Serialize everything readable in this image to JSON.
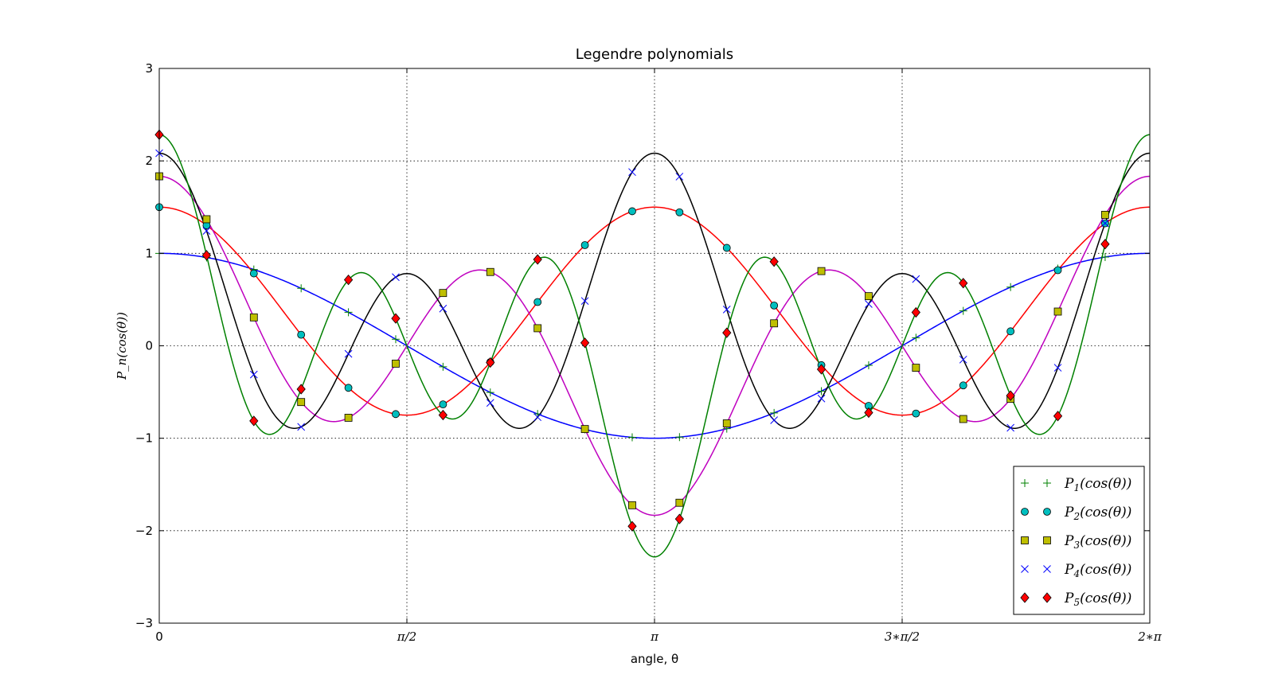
{
  "chart_data": {
    "type": "line",
    "title": "Legendre polynomials",
    "xlabel": "angle, θ",
    "ylabel": "P_n(cos(θ))",
    "xlim": [
      0,
      6.283185307
    ],
    "ylim": [
      -3,
      3
    ],
    "grid": true,
    "legend_position": "lower-right",
    "xticks": [
      {
        "value": 0,
        "label": "0"
      },
      {
        "value": 1.570796327,
        "label": "π/2"
      },
      {
        "value": 3.141592654,
        "label": "π"
      },
      {
        "value": 4.71238898,
        "label": "3∗π/2"
      },
      {
        "value": 6.283185307,
        "label": "2∗π"
      }
    ],
    "yticks": [
      {
        "value": 3,
        "label": "3"
      },
      {
        "value": 2,
        "label": "2"
      },
      {
        "value": 1,
        "label": "1"
      },
      {
        "value": 0,
        "label": "0"
      },
      {
        "value": -1,
        "label": "−1"
      },
      {
        "value": -2,
        "label": "−2"
      },
      {
        "value": -3,
        "label": "−3"
      }
    ],
    "marker_x": [
      0,
      0.3,
      0.6,
      0.9,
      1.2,
      1.5,
      1.8,
      2.1,
      2.4,
      2.7,
      3.0,
      3.3,
      3.6,
      3.9,
      4.2,
      4.5,
      4.8,
      5.1,
      5.4,
      5.7,
      6.0
    ],
    "series": [
      {
        "name": "P_1(cos(θ))",
        "degree": 1,
        "scale": 1.0,
        "line_color": "#0000ff",
        "marker": "plus",
        "marker_color": "#008000"
      },
      {
        "name": "P_2(cos(θ))",
        "degree": 2,
        "scale": 1.5,
        "line_color": "#ff0000",
        "marker": "circle",
        "marker_color": "#00bfbf"
      },
      {
        "name": "P_3(cos(θ))",
        "degree": 3,
        "scale": 1.8333,
        "line_color": "#bf00bf",
        "marker": "square",
        "marker_color": "#bfbf00"
      },
      {
        "name": "P_4(cos(θ))",
        "degree": 4,
        "scale": 2.0833,
        "line_color": "#000000",
        "marker": "x",
        "marker_color": "#0000ff"
      },
      {
        "name": "P_5(cos(θ))",
        "degree": 5,
        "scale": 2.2833,
        "line_color": "#008000",
        "marker": "diamond",
        "marker_color": "#ff0000"
      }
    ]
  }
}
